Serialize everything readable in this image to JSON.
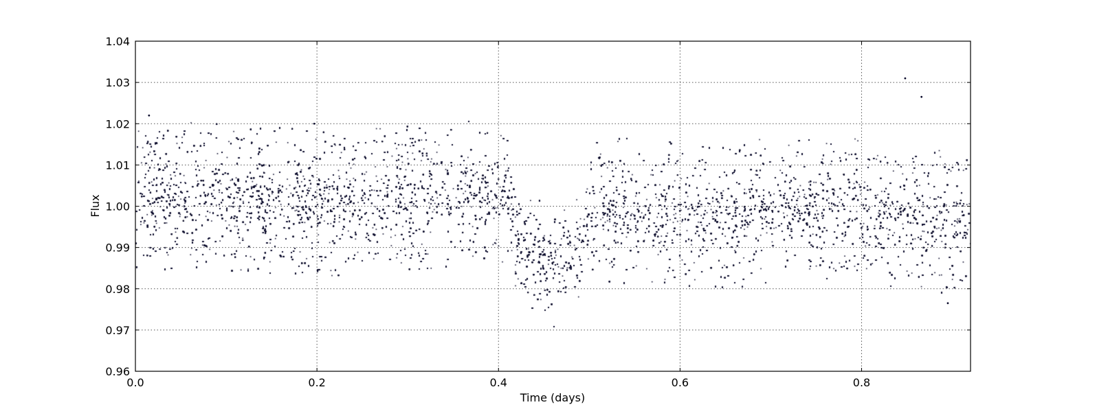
{
  "chart_data": {
    "type": "scatter",
    "title": "",
    "xlabel": "Time (days)",
    "ylabel": "Flux",
    "xlim": [
      0.0,
      0.92
    ],
    "ylim": [
      0.96,
      1.04
    ],
    "x_ticks": [
      0.0,
      0.2,
      0.4,
      0.6,
      0.8
    ],
    "x_tick_labels": [
      "0.0",
      "0.2",
      "0.4",
      "0.6",
      "0.8"
    ],
    "y_ticks": [
      0.96,
      0.97,
      0.98,
      0.99,
      1.0,
      1.01,
      1.02,
      1.03,
      1.04
    ],
    "y_tick_labels": [
      "0.96",
      "0.97",
      "0.98",
      "0.99",
      "1.00",
      "1.01",
      "1.02",
      "1.03",
      "1.04"
    ],
    "grid": true,
    "legend": "none",
    "marker_color": "#0a0a2a",
    "n_points": 26000,
    "baseline_flux": 1.0,
    "scatter_range": [
      0.983,
      1.017
    ],
    "transit": {
      "ingress_start": 0.41,
      "center": 0.455,
      "egress_end": 0.5,
      "min_flux": 0.966,
      "core_depth": 0.985
    },
    "outliers": [
      {
        "x": 0.015,
        "y": 1.022
      },
      {
        "x": 0.848,
        "y": 1.031
      },
      {
        "x": 0.866,
        "y": 1.0265
      },
      {
        "x": 0.895,
        "y": 0.9765
      },
      {
        "x": 0.197,
        "y": 1.02
      }
    ]
  }
}
